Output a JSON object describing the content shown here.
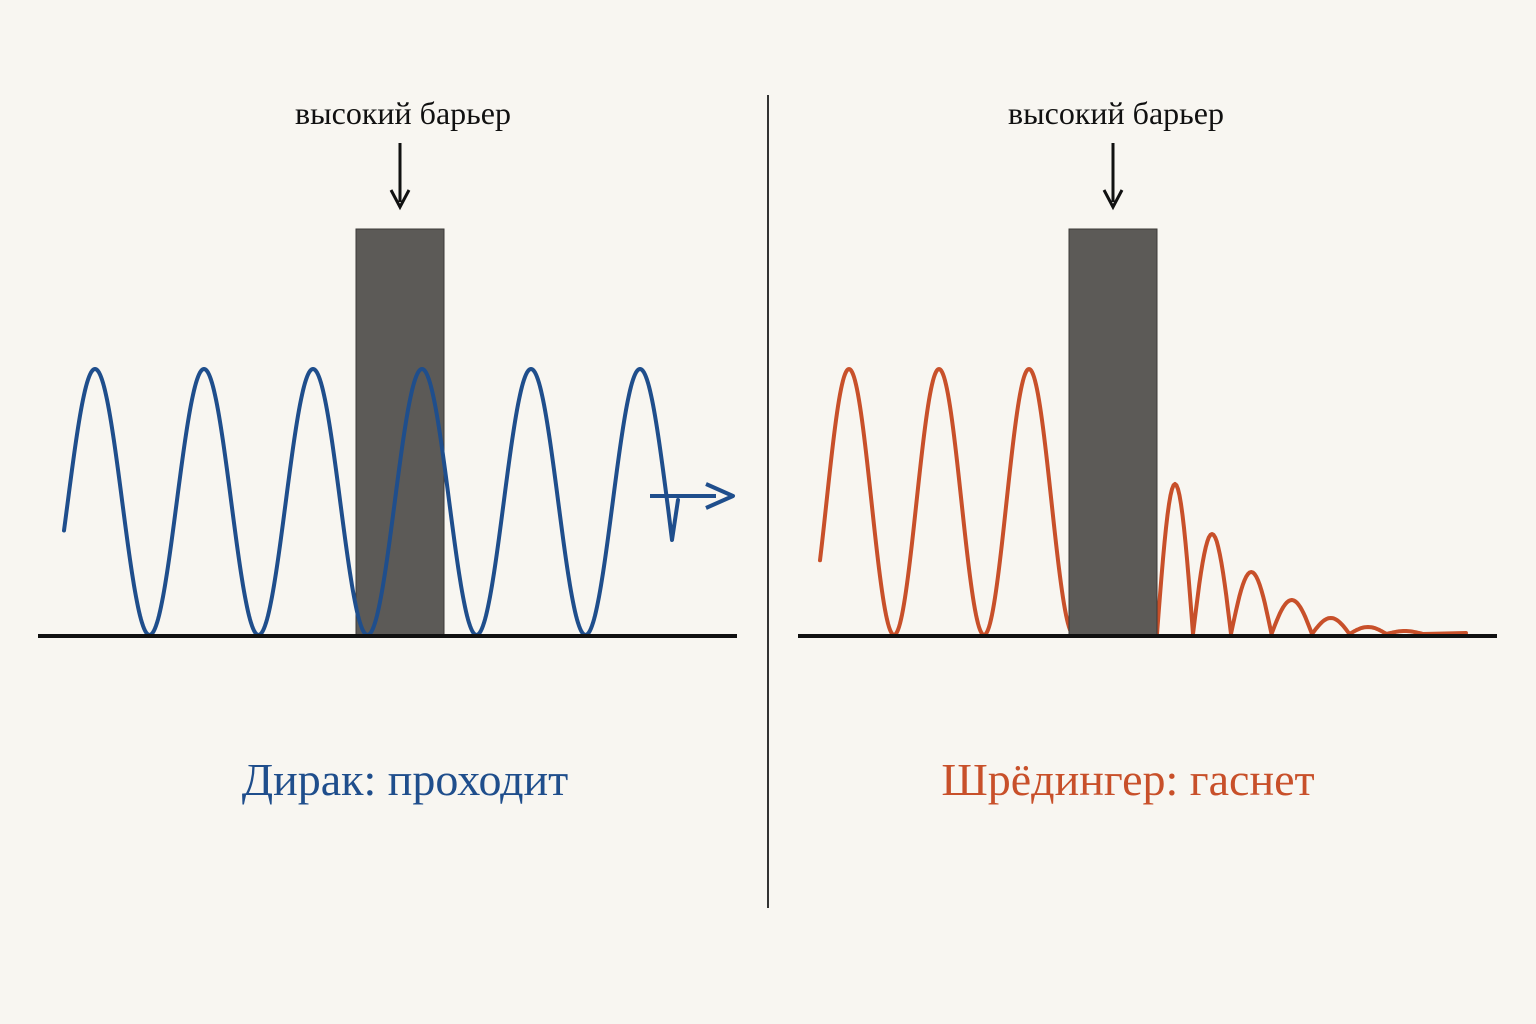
{
  "colors": {
    "background": "#f8f6f1",
    "dirac": "#1f4e8c",
    "schrodinger": "#c8502a",
    "barrier": "#5c5a57",
    "axis": "#111111",
    "divider": "#333333"
  },
  "panels": [
    {
      "id": "dirac",
      "barrier_label": "высокий барьер",
      "caption": "Дирак: проходит",
      "behavior": "transmits"
    },
    {
      "id": "schrodinger",
      "barrier_label": "высокий барьер",
      "caption": "Шрёдингер: гаснет",
      "behavior": "decays"
    }
  ]
}
